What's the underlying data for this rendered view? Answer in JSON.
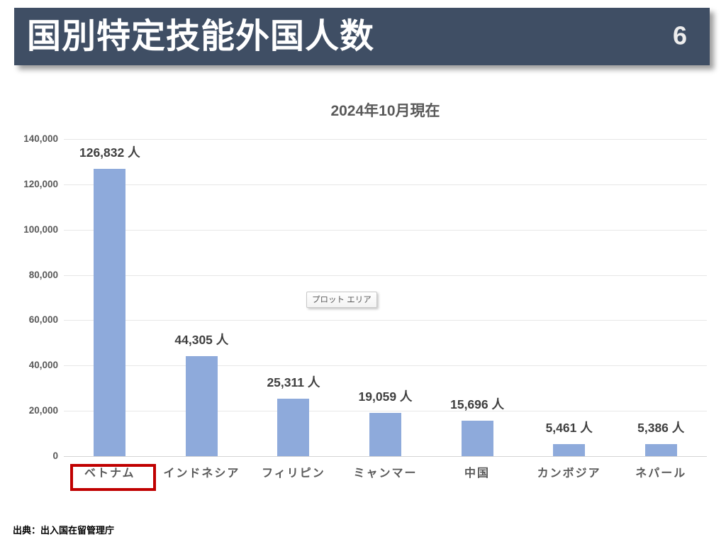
{
  "banner": {
    "title": "国別特定技能外国人数",
    "page_number": "6",
    "bg_color": "#3F4E64"
  },
  "chart_data": {
    "type": "bar",
    "title": "2024年10月現在",
    "categories": [
      "ベトナム",
      "インドネシア",
      "フィリピン",
      "ミャンマー",
      "中国",
      "カンボジア",
      "ネパール"
    ],
    "values": [
      126832,
      44305,
      25311,
      19059,
      15696,
      5461,
      5386
    ],
    "data_labels": [
      "126,832 人",
      "44,305 人",
      "25,311 人",
      "19,059 人",
      "15,696 人",
      "5,461 人",
      "5,386 人"
    ],
    "xlabel": "",
    "ylabel": "",
    "ylim": [
      0,
      140000
    ],
    "ytick_interval": 20000,
    "yticks": [
      "0",
      "20,000",
      "40,000",
      "60,000",
      "80,000",
      "100,000",
      "120,000",
      "140,000"
    ],
    "grid": true,
    "legend": "none",
    "bar_color": "#8EAADB",
    "highlighted_category": "ベトナム",
    "highlight_index": 0,
    "highlight_box_color": "#C00000"
  },
  "tooltip": {
    "text": "プロット エリア"
  },
  "footer": {
    "source": "出典：出入国在留管理庁"
  }
}
